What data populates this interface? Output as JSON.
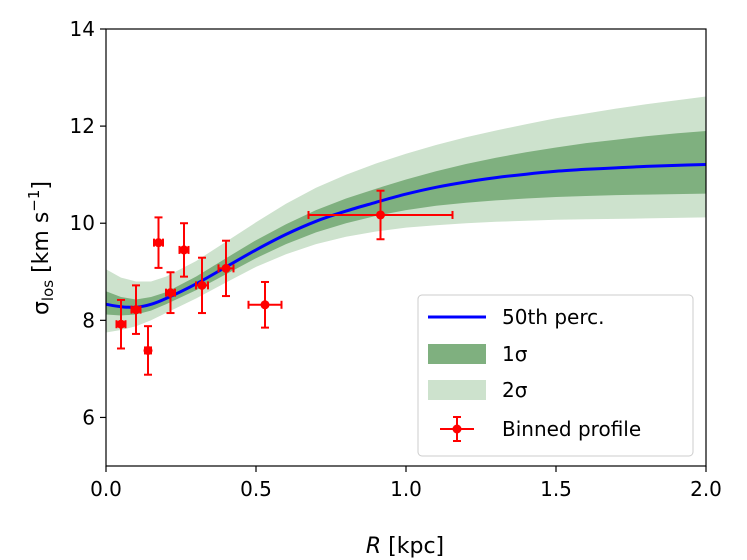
{
  "chart_data": {
    "type": "line",
    "title": "",
    "xlabel_italic": "R",
    "xlabel_rest": " [kpc]",
    "ylabel_main": "σ",
    "ylabel_sub": "los",
    "ylabel_unit": " [km s",
    "ylabel_sup": "−1",
    "ylabel_close": "]",
    "xlim": [
      0.0,
      2.0
    ],
    "ylim": [
      5.0,
      14.0
    ],
    "xticks": [
      0.0,
      0.5,
      1.0,
      1.5,
      2.0
    ],
    "xtick_labels": [
      "0.0",
      "0.5",
      "1.0",
      "1.5",
      "2.0"
    ],
    "yticks": [
      6,
      8,
      10,
      12,
      14
    ],
    "ytick_labels": [
      "6",
      "8",
      "10",
      "12",
      "14"
    ],
    "grid": false,
    "legend_position": "bottom-right",
    "legend": [
      "50th perc.",
      "1σ",
      "2σ",
      "Binned profile"
    ],
    "colors": {
      "median": "#0000ff",
      "band1": "#7fb07f",
      "band2": "#cde2cd",
      "binned": "#ff0000"
    },
    "median": {
      "x": [
        0.0,
        0.05,
        0.1,
        0.15,
        0.2,
        0.3,
        0.4,
        0.5,
        0.6,
        0.7,
        0.8,
        0.9,
        1.0,
        1.1,
        1.2,
        1.3,
        1.4,
        1.5,
        1.6,
        1.7,
        1.8,
        1.9,
        2.0
      ],
      "y": [
        8.33,
        8.28,
        8.27,
        8.33,
        8.45,
        8.75,
        9.1,
        9.45,
        9.77,
        10.04,
        10.25,
        10.43,
        10.6,
        10.74,
        10.85,
        10.94,
        11.01,
        11.07,
        11.11,
        11.14,
        11.17,
        11.19,
        11.21
      ]
    },
    "band_1sigma": {
      "x": [
        0.0,
        0.05,
        0.1,
        0.15,
        0.2,
        0.3,
        0.4,
        0.5,
        0.6,
        0.7,
        0.8,
        0.9,
        1.0,
        1.1,
        1.2,
        1.3,
        1.4,
        1.5,
        1.6,
        1.7,
        1.8,
        1.9,
        2.0
      ],
      "low": [
        8.12,
        8.1,
        8.12,
        8.2,
        8.33,
        8.62,
        8.95,
        9.28,
        9.57,
        9.81,
        10.0,
        10.15,
        10.27,
        10.36,
        10.42,
        10.47,
        10.51,
        10.54,
        10.56,
        10.58,
        10.59,
        10.6,
        10.61
      ],
      "high": [
        8.6,
        8.48,
        8.43,
        8.48,
        8.58,
        8.9,
        9.28,
        9.65,
        9.98,
        10.27,
        10.51,
        10.71,
        10.9,
        11.07,
        11.22,
        11.35,
        11.46,
        11.56,
        11.65,
        11.72,
        11.79,
        11.85,
        11.9
      ]
    },
    "band_2sigma": {
      "x": [
        0.0,
        0.05,
        0.1,
        0.15,
        0.2,
        0.3,
        0.4,
        0.5,
        0.6,
        0.7,
        0.8,
        0.9,
        1.0,
        1.1,
        1.2,
        1.3,
        1.4,
        1.5,
        1.6,
        1.7,
        1.8,
        1.9,
        2.0
      ],
      "low": [
        7.75,
        7.8,
        7.88,
        8.0,
        8.15,
        8.45,
        8.78,
        9.1,
        9.36,
        9.57,
        9.72,
        9.83,
        9.91,
        9.96,
        10.0,
        10.03,
        10.05,
        10.07,
        10.08,
        10.09,
        10.1,
        10.11,
        10.12
      ],
      "high": [
        9.05,
        8.88,
        8.8,
        8.8,
        8.9,
        9.22,
        9.62,
        10.02,
        10.4,
        10.73,
        11.0,
        11.23,
        11.43,
        11.61,
        11.77,
        11.91,
        12.04,
        12.16,
        12.26,
        12.36,
        12.45,
        12.53,
        12.61
      ]
    },
    "binned_profile": [
      {
        "x": 0.05,
        "y": 7.92,
        "xerr": 0.015,
        "yerr": 0.5
      },
      {
        "x": 0.1,
        "y": 8.22,
        "xerr": 0.015,
        "yerr": 0.5
      },
      {
        "x": 0.14,
        "y": 7.38,
        "xerr": 0.01,
        "yerr": 0.5
      },
      {
        "x": 0.175,
        "y": 9.6,
        "xerr": 0.015,
        "yerr": 0.52
      },
      {
        "x": 0.215,
        "y": 8.57,
        "xerr": 0.015,
        "yerr": 0.42
      },
      {
        "x": 0.26,
        "y": 9.45,
        "xerr": 0.015,
        "yerr": 0.55
      },
      {
        "x": 0.32,
        "y": 8.72,
        "xerr": 0.02,
        "yerr": 0.57
      },
      {
        "x": 0.4,
        "y": 9.07,
        "xerr": 0.025,
        "yerr": 0.57
      },
      {
        "x": 0.53,
        "y": 8.32,
        "xerr": 0.055,
        "yerr": 0.47
      },
      {
        "x": 0.915,
        "y": 10.17,
        "xerr": 0.24,
        "yerr": 0.5
      }
    ]
  }
}
